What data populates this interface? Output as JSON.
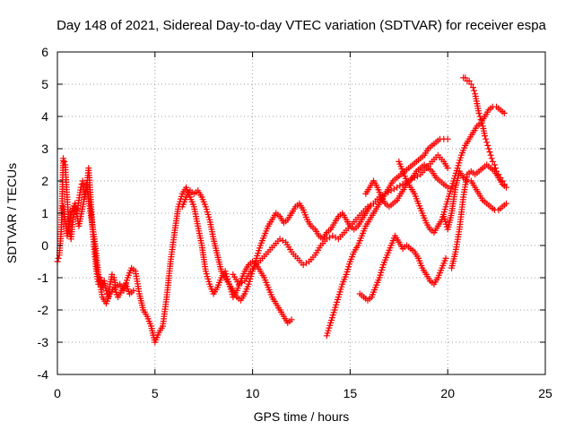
{
  "chart_data": {
    "type": "scatter",
    "title": "Day 148 of 2021, Sidereal Day-to-day VTEC variation (SDTVAR) for receiver espa",
    "xlabel": "GPS time / hours",
    "ylabel": "SDTVAR / TECUs",
    "xlim": [
      0,
      25
    ],
    "ylim": [
      -4,
      6
    ],
    "xticks": [
      "0",
      "5",
      "10",
      "15",
      "20",
      "25"
    ],
    "yticks": [
      "-4",
      "-3",
      "-2",
      "-1",
      "0",
      "1",
      "2",
      "3",
      "4",
      "5",
      "6"
    ],
    "grid": true,
    "marker": "+",
    "color": "#ff0000",
    "series": [
      {
        "x": [
          0.0,
          0.1,
          0.2,
          0.3,
          0.4,
          0.5,
          0.6,
          0.7,
          0.8,
          0.9,
          1.0,
          1.1,
          1.2,
          1.3,
          1.4,
          1.5,
          1.6,
          1.7,
          1.8,
          1.9,
          2.0,
          2.1,
          2.2,
          2.3,
          2.4,
          2.5,
          2.6,
          2.7,
          2.8,
          2.9,
          3.0,
          3.2,
          3.4,
          3.6,
          3.8,
          4.0,
          4.2,
          4.4,
          4.6,
          4.8,
          5.0,
          5.2,
          5.4,
          5.6,
          5.8,
          6.0,
          6.2,
          6.4,
          6.6,
          6.8,
          7.0,
          7.2,
          7.4,
          7.6,
          7.8,
          8.0,
          8.2,
          8.4,
          8.6,
          8.8,
          9.0,
          9.2,
          9.4,
          9.6,
          9.8,
          10.0,
          10.2,
          10.4,
          10.6,
          10.8,
          11.0,
          11.2,
          11.4,
          11.6,
          11.8,
          12.0
        ],
        "y": [
          -0.5,
          -0.3,
          0.5,
          2.7,
          2.5,
          1.5,
          0.5,
          0.2,
          0.8,
          1.2,
          1.0,
          1.4,
          1.8,
          2.0,
          1.5,
          1.8,
          2.4,
          1.5,
          0.5,
          -0.2,
          -0.8,
          -1.2,
          -1.0,
          -1.3,
          -1.1,
          -1.4,
          -1.6,
          -1.2,
          -0.9,
          -1.0,
          -1.3,
          -1.2,
          -1.4,
          -1.0,
          -0.7,
          -0.8,
          -1.5,
          -2.0,
          -2.2,
          -2.5,
          -3.0,
          -2.7,
          -2.5,
          -1.6,
          -0.5,
          0.4,
          1.2,
          1.6,
          1.8,
          1.5,
          1.2,
          0.6,
          0.0,
          -0.8,
          -1.2,
          -1.5,
          -1.3,
          -1.0,
          -0.8,
          -1.2,
          -1.6,
          -1.4,
          -1.1,
          -0.8,
          -0.6,
          -0.5,
          -0.6,
          -0.8,
          -1.0,
          -1.3,
          -1.6,
          -1.8,
          -2.0,
          -2.2,
          -2.4,
          -2.3
        ]
      },
      {
        "x": [
          0.3,
          0.5,
          0.7,
          0.9,
          1.1,
          1.3,
          1.5,
          1.7,
          1.9,
          2.1,
          2.3,
          2.5,
          2.7,
          2.9,
          3.1,
          3.3,
          3.5,
          3.7,
          3.9
        ],
        "y": [
          1.2,
          0.3,
          1.0,
          1.3,
          0.6,
          1.2,
          1.9,
          1.0,
          0.2,
          -0.9,
          -1.6,
          -1.8,
          -1.5,
          -1.3,
          -1.6,
          -1.4,
          -1.2,
          -1.5,
          -1.4
        ]
      },
      {
        "x": [
          6.4,
          6.6,
          6.8,
          7.0,
          7.2,
          7.4,
          7.6,
          7.8,
          8.0,
          8.2,
          8.4,
          8.6,
          8.8,
          9.0,
          9.2,
          9.4,
          9.6,
          9.8,
          10.0,
          10.2,
          10.4,
          10.6,
          10.8,
          11.0,
          11.2,
          11.4,
          11.6,
          11.8,
          12.0,
          12.2,
          12.4,
          12.6,
          12.8,
          13.0,
          13.2,
          13.4,
          13.6,
          13.8,
          14.0,
          14.2,
          14.4,
          14.6,
          14.8,
          15.0,
          15.2,
          15.4,
          15.6,
          15.8,
          16.0
        ],
        "y": [
          1.2,
          1.5,
          1.7,
          1.6,
          1.7,
          1.5,
          1.2,
          0.8,
          0.2,
          -0.3,
          -0.8,
          -1.0,
          -1.2,
          -1.4,
          -1.6,
          -1.7,
          -1.5,
          -1.2,
          -0.8,
          -0.4,
          0.0,
          0.3,
          0.6,
          0.8,
          1.0,
          0.9,
          0.7,
          0.8,
          1.0,
          1.2,
          1.3,
          1.1,
          0.8,
          0.6,
          0.5,
          0.3,
          0.2,
          0.4,
          0.5,
          0.7,
          0.9,
          1.0,
          0.8,
          0.6,
          0.5,
          0.6,
          0.8,
          1.0,
          1.2
        ]
      },
      {
        "x": [
          9.0,
          9.3,
          9.6,
          9.9,
          10.2,
          10.5,
          10.8,
          11.1,
          11.4,
          11.7,
          12.0,
          12.3,
          12.6,
          12.9,
          13.2,
          13.5,
          13.8,
          14.1,
          14.4,
          14.7,
          15.0,
          15.3,
          15.6,
          15.9,
          16.2,
          16.5,
          16.8,
          17.1,
          17.4,
          17.7,
          18.0,
          18.3,
          18.6,
          18.9,
          19.2,
          19.5,
          19.8,
          20.0
        ],
        "y": [
          -0.9,
          -1.2,
          -1.1,
          -0.8,
          -0.6,
          -0.4,
          -0.2,
          0.0,
          0.2,
          0.1,
          -0.2,
          -0.4,
          -0.6,
          -0.5,
          -0.3,
          0.0,
          0.2,
          0.3,
          0.2,
          0.4,
          0.6,
          0.8,
          1.0,
          1.2,
          1.3,
          1.5,
          1.6,
          1.7,
          1.8,
          1.9,
          2.0,
          2.1,
          2.2,
          2.4,
          2.6,
          2.8,
          2.6,
          2.4
        ]
      },
      {
        "x": [
          13.8,
          14.0,
          14.2,
          14.4,
          14.6,
          14.8,
          15.0,
          15.2,
          15.4,
          15.6,
          15.8,
          16.0,
          16.2,
          16.4,
          16.6,
          16.8,
          17.0,
          17.2,
          17.4,
          17.6,
          17.8,
          18.0,
          18.2,
          18.4,
          18.6,
          18.8,
          19.0,
          19.2,
          19.4,
          19.6,
          19.8,
          20.0
        ],
        "y": [
          -2.8,
          -2.4,
          -2.0,
          -1.6,
          -1.2,
          -0.9,
          -0.5,
          -0.2,
          0.0,
          0.3,
          0.6,
          0.8,
          1.0,
          1.2,
          1.4,
          1.6,
          1.8,
          2.0,
          2.1,
          2.2,
          2.3,
          2.4,
          2.5,
          2.6,
          2.7,
          2.8,
          3.0,
          3.1,
          3.2,
          3.3,
          3.3,
          3.3
        ]
      },
      {
        "x": [
          15.5,
          15.7,
          15.9,
          16.1,
          16.3,
          16.5,
          16.7,
          16.9,
          17.1,
          17.3,
          17.5,
          17.7,
          17.9,
          18.1,
          18.3,
          18.5,
          18.7,
          18.9,
          19.1,
          19.3,
          19.5,
          19.7,
          19.9
        ],
        "y": [
          -1.5,
          -1.6,
          -1.7,
          -1.6,
          -1.3,
          -1.0,
          -0.6,
          -0.3,
          0.0,
          0.3,
          0.1,
          -0.1,
          0.0,
          -0.1,
          -0.2,
          -0.4,
          -0.7,
          -0.9,
          -1.1,
          -1.2,
          -1.0,
          -0.7,
          -0.4
        ]
      },
      {
        "x": [
          15.8,
          16.0,
          16.2,
          16.4,
          16.6,
          16.8,
          17.0,
          17.2,
          17.4,
          17.6,
          17.8,
          18.0,
          18.2,
          18.4,
          18.6,
          18.8,
          19.0,
          19.2,
          19.4,
          19.6,
          19.8,
          20.0
        ],
        "y": [
          1.6,
          1.8,
          2.0,
          1.8,
          1.5,
          1.3,
          1.2,
          1.3,
          1.4,
          1.6,
          1.8,
          2.0,
          2.1,
          2.3,
          2.4,
          2.5,
          2.4,
          2.3,
          2.1,
          2.0,
          1.9,
          1.8
        ]
      },
      {
        "x": [
          17.5,
          17.7,
          17.9,
          18.1,
          18.3,
          18.5,
          18.7,
          18.9,
          19.1,
          19.3,
          19.5,
          19.7,
          19.9,
          20.1,
          20.3,
          20.5,
          20.7,
          20.9,
          21.1,
          21.3,
          21.5,
          21.7,
          21.9,
          22.1,
          22.3,
          22.5,
          22.7,
          22.9
        ],
        "y": [
          2.6,
          2.3,
          2.0,
          1.8,
          1.6,
          1.3,
          1.0,
          0.7,
          0.5,
          0.4,
          0.6,
          0.8,
          1.2,
          1.6,
          2.0,
          2.4,
          2.8,
          3.1,
          3.3,
          3.5,
          3.7,
          3.8,
          4.0,
          4.2,
          4.3,
          4.3,
          4.2,
          4.1
        ]
      },
      {
        "x": [
          19.8,
          20.0,
          20.2,
          20.4,
          20.6,
          20.8,
          21.0,
          21.2,
          21.4,
          21.6,
          21.8,
          22.0,
          22.2,
          22.4,
          22.6,
          22.8,
          23.0
        ],
        "y": [
          0.9,
          0.5,
          1.0,
          1.8,
          2.3,
          2.1,
          2.0,
          2.0,
          1.8,
          1.6,
          1.4,
          1.3,
          1.2,
          1.1,
          1.1,
          1.2,
          1.3
        ]
      },
      {
        "x": [
          20.2,
          20.4,
          20.6,
          20.8,
          21.0,
          21.2,
          21.4,
          21.6,
          21.8,
          22.0,
          22.2,
          22.4,
          22.6,
          22.8,
          23.0
        ],
        "y": [
          -0.7,
          -0.2,
          0.5,
          1.5,
          2.2,
          2.3,
          2.2,
          2.3,
          2.4,
          2.5,
          2.4,
          2.3,
          2.1,
          1.9,
          1.8
        ]
      },
      {
        "x": [
          20.8,
          20.9,
          21.0,
          21.1,
          21.2,
          21.3,
          21.4,
          21.5,
          21.6,
          21.7,
          21.8,
          21.9,
          22.0,
          22.1,
          22.2,
          22.3,
          22.4,
          22.5,
          22.6,
          22.7,
          22.8,
          22.9
        ],
        "y": [
          5.2,
          5.2,
          5.1,
          5.1,
          5.0,
          4.9,
          4.7,
          4.4,
          4.1,
          3.9,
          3.7,
          3.4,
          3.2,
          3.0,
          2.8,
          2.6,
          2.5,
          2.3,
          2.2,
          2.1,
          2.0,
          1.9
        ]
      }
    ]
  }
}
